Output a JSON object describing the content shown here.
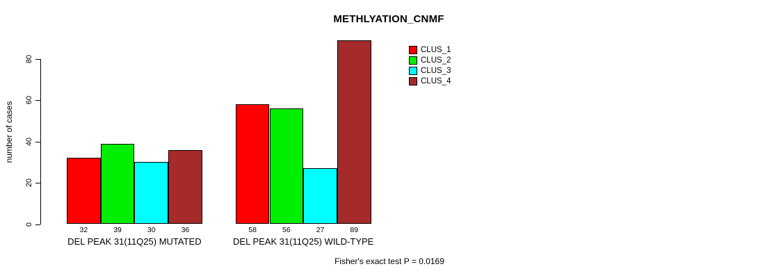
{
  "chart_data": {
    "type": "bar",
    "title": "METHLYATION_CNMF",
    "ylabel": "number of cases",
    "xlabel": "",
    "ylim": [
      0,
      89
    ],
    "yticks": [
      0,
      20,
      40,
      60,
      80
    ],
    "grid": false,
    "legend_position": "top-right",
    "categories": [
      "DEL PEAK 31(11Q25) MUTATED",
      "DEL PEAK 31(11Q25) WILD-TYPE"
    ],
    "series": [
      {
        "name": "CLUS_1",
        "color": "#FF0000",
        "values": [
          32,
          58
        ]
      },
      {
        "name": "CLUS_2",
        "color": "#00EE00",
        "values": [
          39,
          56
        ]
      },
      {
        "name": "CLUS_3",
        "color": "#00FFFF",
        "values": [
          30,
          27
        ]
      },
      {
        "name": "CLUS_4",
        "color": "#A52A2A",
        "values": [
          36,
          89
        ]
      }
    ],
    "bar_value_labels": [
      [
        32,
        39,
        30,
        36
      ],
      [
        58,
        56,
        27,
        89
      ]
    ],
    "annotation": "Fisher's exact test P = 0.0169"
  }
}
